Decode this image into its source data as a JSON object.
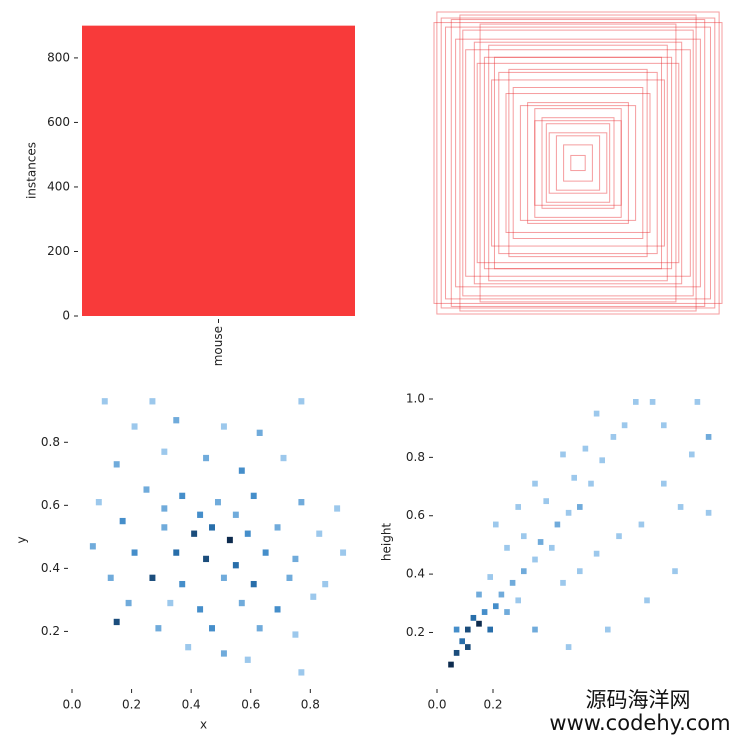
{
  "chart_data": [
    {
      "type": "bar",
      "ylabel": "instances",
      "categories": [
        "mouse"
      ],
      "values": [
        900
      ],
      "color": "#f83a3a",
      "ylim": [
        0,
        902
      ],
      "yticks": [
        0,
        200,
        400,
        600,
        800
      ]
    },
    {
      "type": "boxes",
      "color": "#e8262a",
      "boxes": [
        [
          0.05,
          0.05
        ],
        [
          0.1,
          0.12
        ],
        [
          0.15,
          0.18
        ],
        [
          0.2,
          0.2
        ],
        [
          0.25,
          0.3
        ],
        [
          0.3,
          0.28
        ],
        [
          0.35,
          0.4
        ],
        [
          0.4,
          0.38
        ],
        [
          0.45,
          0.5
        ],
        [
          0.5,
          0.46
        ],
        [
          0.55,
          0.6
        ],
        [
          0.6,
          0.55
        ],
        [
          0.65,
          0.7
        ],
        [
          0.7,
          0.66
        ],
        [
          0.72,
          0.8
        ],
        [
          0.78,
          0.75
        ],
        [
          0.8,
          0.88
        ],
        [
          0.85,
          0.82
        ],
        [
          0.88,
          0.95
        ],
        [
          0.92,
          0.9
        ],
        [
          0.95,
          0.96
        ],
        [
          1.0,
          0.93
        ],
        [
          0.62,
          0.78
        ],
        [
          0.48,
          0.62
        ],
        [
          0.3,
          0.36
        ],
        [
          0.22,
          0.26
        ],
        [
          0.58,
          0.7
        ],
        [
          0.82,
          0.98
        ],
        [
          0.68,
          0.92
        ],
        [
          0.98,
          1.0
        ]
      ]
    },
    {
      "type": "histogram2d",
      "xlabel": "x",
      "ylabel": "y",
      "color": "#2f7fc1",
      "bin_size": 0.02,
      "xlim": [
        0,
        0.95
      ],
      "ylim": [
        0.03,
        0.95
      ],
      "xticks": [
        0.0,
        0.2,
        0.4,
        0.6,
        0.8
      ],
      "yticks": [
        0.2,
        0.4,
        0.6,
        0.8
      ],
      "xtick_labels": [
        "0.0",
        "0.2",
        "0.4",
        "0.6",
        "0.8"
      ],
      "cells": [
        [
          0.1,
          0.92,
          1
        ],
        [
          0.26,
          0.92,
          1
        ],
        [
          0.76,
          0.92,
          1
        ],
        [
          0.2,
          0.84,
          1
        ],
        [
          0.34,
          0.86,
          2
        ],
        [
          0.5,
          0.84,
          1
        ],
        [
          0.62,
          0.82,
          2
        ],
        [
          0.14,
          0.72,
          2
        ],
        [
          0.3,
          0.76,
          1
        ],
        [
          0.44,
          0.74,
          2
        ],
        [
          0.56,
          0.7,
          3
        ],
        [
          0.7,
          0.74,
          1
        ],
        [
          0.08,
          0.6,
          1
        ],
        [
          0.24,
          0.64,
          2
        ],
        [
          0.36,
          0.62,
          3
        ],
        [
          0.48,
          0.6,
          2
        ],
        [
          0.6,
          0.62,
          3
        ],
        [
          0.76,
          0.6,
          2
        ],
        [
          0.88,
          0.58,
          1
        ],
        [
          0.16,
          0.54,
          3
        ],
        [
          0.3,
          0.52,
          2
        ],
        [
          0.4,
          0.5,
          5
        ],
        [
          0.46,
          0.52,
          4
        ],
        [
          0.52,
          0.48,
          6
        ],
        [
          0.58,
          0.5,
          3
        ],
        [
          0.68,
          0.52,
          2
        ],
        [
          0.82,
          0.5,
          1
        ],
        [
          0.06,
          0.46,
          2
        ],
        [
          0.2,
          0.44,
          3
        ],
        [
          0.34,
          0.44,
          4
        ],
        [
          0.44,
          0.42,
          5
        ],
        [
          0.54,
          0.4,
          4
        ],
        [
          0.64,
          0.44,
          3
        ],
        [
          0.74,
          0.42,
          2
        ],
        [
          0.9,
          0.44,
          1
        ],
        [
          0.12,
          0.36,
          2
        ],
        [
          0.26,
          0.36,
          5
        ],
        [
          0.36,
          0.34,
          3
        ],
        [
          0.5,
          0.36,
          2
        ],
        [
          0.6,
          0.34,
          4
        ],
        [
          0.72,
          0.36,
          2
        ],
        [
          0.84,
          0.34,
          1
        ],
        [
          0.18,
          0.28,
          2
        ],
        [
          0.32,
          0.28,
          1
        ],
        [
          0.42,
          0.26,
          3
        ],
        [
          0.56,
          0.28,
          2
        ],
        [
          0.68,
          0.26,
          3
        ],
        [
          0.8,
          0.3,
          1
        ],
        [
          0.14,
          0.22,
          5
        ],
        [
          0.28,
          0.2,
          2
        ],
        [
          0.46,
          0.2,
          3
        ],
        [
          0.62,
          0.2,
          2
        ],
        [
          0.74,
          0.18,
          1
        ],
        [
          0.38,
          0.14,
          1
        ],
        [
          0.5,
          0.12,
          2
        ],
        [
          0.58,
          0.1,
          1
        ],
        [
          0.76,
          0.06,
          1
        ],
        [
          0.3,
          0.58,
          2
        ],
        [
          0.42,
          0.56,
          3
        ],
        [
          0.54,
          0.56,
          2
        ]
      ]
    },
    {
      "type": "histogram2d",
      "ylabel": "height",
      "color": "#2f7fc1",
      "bin_size": 0.02,
      "xlim": [
        0,
        1.0
      ],
      "ylim": [
        0.02,
        1.0
      ],
      "xticks": [
        0.0,
        0.2
      ],
      "yticks": [
        0.2,
        0.4,
        0.6,
        0.8,
        1.0
      ],
      "xtick_labels": [
        "0.0",
        "0.2"
      ],
      "ytick_labels": [
        "0.2",
        "0.4",
        "0.6",
        "0.8",
        "1.0"
      ],
      "cells": [
        [
          0.04,
          0.08,
          6
        ],
        [
          0.06,
          0.12,
          5
        ],
        [
          0.08,
          0.16,
          4
        ],
        [
          0.1,
          0.2,
          5
        ],
        [
          0.12,
          0.24,
          4
        ],
        [
          0.14,
          0.22,
          6
        ],
        [
          0.16,
          0.26,
          3
        ],
        [
          0.18,
          0.2,
          4
        ],
        [
          0.06,
          0.2,
          3
        ],
        [
          0.1,
          0.14,
          5
        ],
        [
          0.2,
          0.28,
          3
        ],
        [
          0.22,
          0.32,
          2
        ],
        [
          0.24,
          0.26,
          2
        ],
        [
          0.26,
          0.36,
          2
        ],
        [
          0.28,
          0.3,
          1
        ],
        [
          0.14,
          0.32,
          2
        ],
        [
          0.18,
          0.38,
          1
        ],
        [
          0.3,
          0.4,
          2
        ],
        [
          0.34,
          0.44,
          1
        ],
        [
          0.36,
          0.5,
          2
        ],
        [
          0.4,
          0.48,
          1
        ],
        [
          0.42,
          0.56,
          2
        ],
        [
          0.46,
          0.6,
          1
        ],
        [
          0.5,
          0.62,
          2
        ],
        [
          0.3,
          0.52,
          1
        ],
        [
          0.24,
          0.48,
          1
        ],
        [
          0.2,
          0.56,
          1
        ],
        [
          0.38,
          0.64,
          1
        ],
        [
          0.48,
          0.72,
          1
        ],
        [
          0.54,
          0.7,
          1
        ],
        [
          0.58,
          0.78,
          1
        ],
        [
          0.62,
          0.86,
          1
        ],
        [
          0.66,
          0.9,
          1
        ],
        [
          0.7,
          0.98,
          1
        ],
        [
          0.76,
          0.98,
          1
        ],
        [
          0.92,
          0.98,
          1
        ],
        [
          0.96,
          0.86,
          2
        ],
        [
          0.96,
          0.6,
          1
        ],
        [
          0.86,
          0.62,
          1
        ],
        [
          0.8,
          0.7,
          1
        ],
        [
          0.72,
          0.56,
          1
        ],
        [
          0.64,
          0.52,
          1
        ],
        [
          0.56,
          0.46,
          1
        ],
        [
          0.5,
          0.4,
          1
        ],
        [
          0.44,
          0.36,
          1
        ],
        [
          0.6,
          0.2,
          1
        ],
        [
          0.46,
          0.14,
          1
        ],
        [
          0.34,
          0.2,
          2
        ],
        [
          0.52,
          0.82,
          1
        ],
        [
          0.44,
          0.8,
          1
        ],
        [
          0.34,
          0.7,
          1
        ],
        [
          0.28,
          0.62,
          1
        ],
        [
          0.56,
          0.94,
          1
        ],
        [
          0.8,
          0.9,
          1
        ],
        [
          0.9,
          0.8,
          1
        ],
        [
          0.84,
          0.4,
          1
        ],
        [
          0.74,
          0.3,
          1
        ]
      ]
    }
  ],
  "watermark": {
    "name": "源码海洋网",
    "url": "www.codehy.com"
  }
}
